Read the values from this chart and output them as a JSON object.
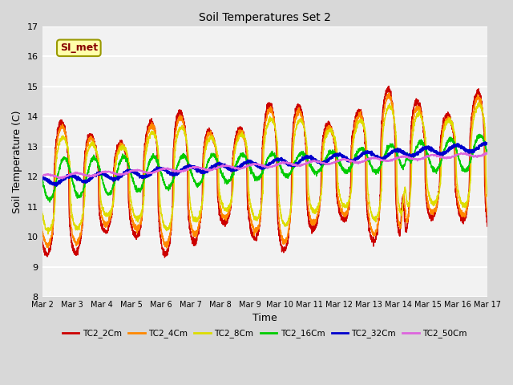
{
  "title": "Soil Temperatures Set 2",
  "xlabel": "Time",
  "ylabel": "Soil Temperature (C)",
  "ylim": [
    8.0,
    17.0
  ],
  "yticks": [
    8.0,
    9.0,
    10.0,
    11.0,
    12.0,
    13.0,
    14.0,
    15.0,
    16.0,
    17.0
  ],
  "xtick_labels": [
    "Mar 2",
    "Mar 3",
    "Mar 4",
    "Mar 5",
    "Mar 6",
    "Mar 7",
    "Mar 8",
    "Mar 9",
    "Mar 10",
    "Mar 11",
    "Mar 12",
    "Mar 13",
    "Mar 14",
    "Mar 15",
    "Mar 16",
    "Mar 17"
  ],
  "series_colors": [
    "#cc0000",
    "#ff8800",
    "#dddd00",
    "#00cc00",
    "#0000cc",
    "#dd66dd"
  ],
  "series_labels": [
    "TC2_2Cm",
    "TC2_4Cm",
    "TC2_8Cm",
    "TC2_16Cm",
    "TC2_32Cm",
    "TC2_50Cm"
  ],
  "series_linewidths": [
    1.0,
    1.0,
    1.0,
    1.0,
    1.5,
    1.0
  ],
  "annotation_text": "SI_met",
  "bg_color": "#f0f0f0",
  "grid_color": "#ffffff",
  "n_points": 3601,
  "days": 15
}
